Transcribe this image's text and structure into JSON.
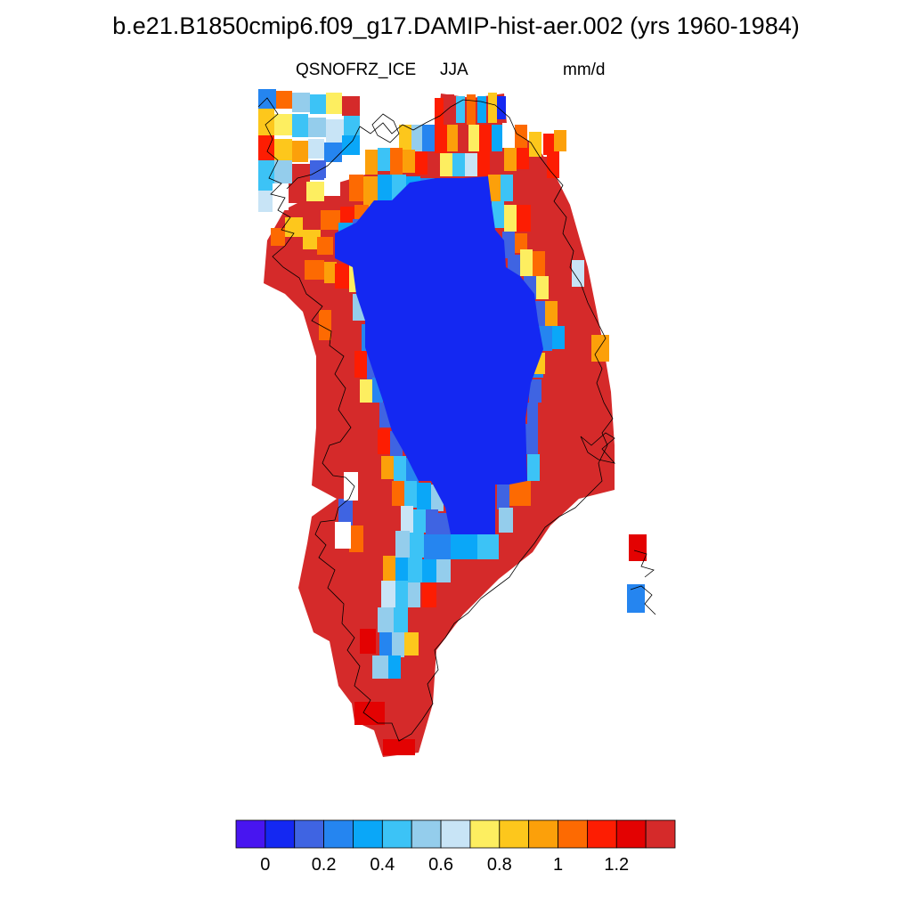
{
  "title": "b.e21.B1850cmip6.f09_g17.DAMIP-hist-aer.002 (yrs 1960-1984)",
  "subtitle": {
    "left": "QSNOFRZ_ICE",
    "center": "JJA",
    "right": "mm/d"
  },
  "colorbar": {
    "colors": [
      "#4815f0",
      "#1428f2",
      "#3f64e2",
      "#2585f0",
      "#0aa7f8",
      "#3cc3f6",
      "#94cdec",
      "#c8e4f6",
      "#fdee60",
      "#fdc71c",
      "#fca00a",
      "#fd6a02",
      "#fd1d02",
      "#e30202",
      "#d52a2a"
    ],
    "tick_labels": [
      "0",
      "0.2",
      "0.4",
      "0.6",
      "0.8",
      "1",
      "1.2"
    ]
  },
  "map": {
    "region": "Greenland",
    "interior_value": "#1428f2",
    "coast_value": "#d52a2a"
  }
}
